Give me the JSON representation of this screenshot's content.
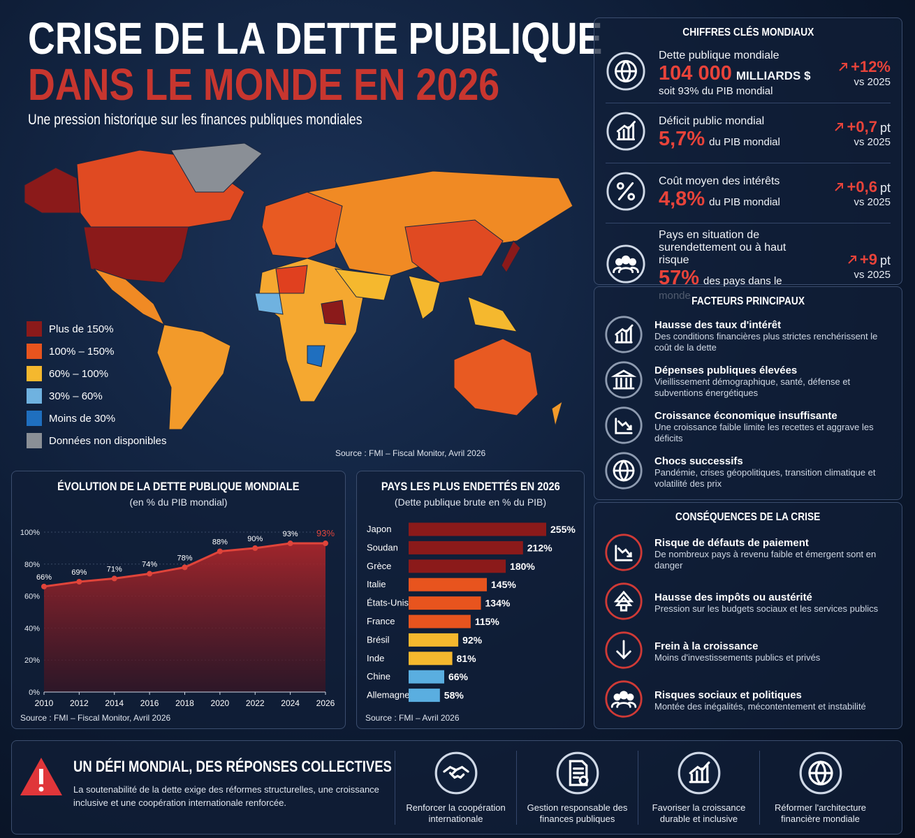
{
  "header": {
    "title_line1": "CRISE DE LA DETTE PUBLIQUE",
    "title_line2": "DANS LE MONDE EN 2026",
    "subtitle": "Une pression historique sur les finances publiques mondiales"
  },
  "map": {
    "legend": [
      {
        "label": "Plus de 150%",
        "color": "#8b1a1a"
      },
      {
        "label": "100% – 150%",
        "color": "#e8541e"
      },
      {
        "label": "60% – 100%",
        "color": "#f5b82e"
      },
      {
        "label": "30% – 60%",
        "color": "#6fb2e0"
      },
      {
        "label": "Moins de 30%",
        "color": "#1f6fbf"
      },
      {
        "label": "Données non disponibles",
        "color": "#8a8f96"
      }
    ],
    "source": "Source : FMI – Fiscal Monitor, Avril 2026"
  },
  "key_figures": {
    "title": "CHIFFRES CLÉS MONDIAUX",
    "items": [
      {
        "label": "Dette publique mondiale",
        "value": "104 000",
        "unit": "MILLIARDS $",
        "note": "soit 93% du PIB mondial",
        "change": "+12%",
        "ref": "vs 2025"
      },
      {
        "label": "Déficit public mondial",
        "value": "5,7%",
        "unit": "du PIB mondial",
        "change": "+0,7",
        "change_unit": "pt",
        "ref": "vs 2025"
      },
      {
        "label": "Coût moyen des intérêts",
        "value": "4,8%",
        "unit": "du PIB mondial",
        "change": "+0,6",
        "change_unit": "pt",
        "ref": "vs 2025"
      },
      {
        "label": "Pays en situation de surendettement ou à haut risque",
        "value": "57%",
        "unit": "des pays dans le monde",
        "change": "+9",
        "change_unit": "pt",
        "ref": "vs 2025"
      }
    ]
  },
  "factors": {
    "title": "FACTEURS PRINCIPAUX",
    "items": [
      {
        "title": "Hausse des taux d'intérêt",
        "text": "Des conditions financières plus strictes renchérissent le coût de la dette"
      },
      {
        "title": "Dépenses publiques élevées",
        "text": "Vieillissement démographique, santé, défense et subventions énergétiques"
      },
      {
        "title": "Croissance économique insuffisante",
        "text": "Une croissance faible limite les recettes et aggrave les déficits"
      },
      {
        "title": "Chocs successifs",
        "text": "Pandémie, crises géopolitiques, transition climatique et volatilité des prix"
      }
    ]
  },
  "consequences": {
    "title": "CONSÉQUENCES DE LA CRISE",
    "items": [
      {
        "title": "Risque de défauts de paiement",
        "text": "De nombreux pays à revenu faible et émergent sont en danger"
      },
      {
        "title": "Hausse des impôts ou austérité",
        "text": "Pression sur les budgets sociaux et les services publics"
      },
      {
        "title": "Frein à la croissance",
        "text": "Moins d'investissements publics et privés"
      },
      {
        "title": "Risques sociaux et politiques",
        "text": "Montée des inégalités, mécontentement et instabilité"
      }
    ]
  },
  "chart_data": [
    {
      "type": "line",
      "title": "ÉVOLUTION DE LA DETTE PUBLIQUE MONDIALE",
      "subtitle": "(en % du PIB mondial)",
      "x": [
        2010,
        2012,
        2014,
        2016,
        2018,
        2020,
        2022,
        2024,
        2026
      ],
      "values": [
        66,
        69,
        71,
        74,
        78,
        88,
        90,
        93,
        93
      ],
      "value_labels": [
        "66%",
        "69%",
        "71%",
        "74%",
        "78%",
        "88%",
        "90%",
        "93%",
        "93%"
      ],
      "color": "#e0443a",
      "xlim": [
        2010,
        2026
      ],
      "xticks": [
        2010,
        2012,
        2014,
        2016,
        2018,
        2020,
        2022,
        2024,
        2026
      ],
      "ylim": [
        0,
        100
      ],
      "yticks": [
        {
          "value": 0,
          "label": "0%"
        },
        {
          "value": 20,
          "label": "20%"
        },
        {
          "value": 40,
          "label": "40%"
        },
        {
          "value": 60,
          "label": "60%"
        },
        {
          "value": 80,
          "label": "80%"
        },
        {
          "value": 100,
          "label": "100%"
        }
      ],
      "grid": true,
      "source": "Source : FMI – Fiscal Monitor, Avril 2026"
    },
    {
      "type": "bar",
      "orientation": "horizontal",
      "title": "PAYS LES PLUS ENDETTÉS EN 2026",
      "subtitle": "(Dette publique brute en % du PIB)",
      "categories": [
        "Japon",
        "Soudan",
        "Grèce",
        "Italie",
        "États-Unis",
        "France",
        "Brésil",
        "Inde",
        "Chine",
        "Allemagne"
      ],
      "values": [
        255,
        212,
        180,
        145,
        134,
        115,
        92,
        81,
        66,
        58
      ],
      "value_labels": [
        "255%",
        "212%",
        "180%",
        "145%",
        "134%",
        "115%",
        "92%",
        "81%",
        "66%",
        "58%"
      ],
      "colors": [
        "#8b1a1a",
        "#8b1a1a",
        "#8b1a1a",
        "#e8541e",
        "#e8541e",
        "#e8541e",
        "#f5b82e",
        "#f5b82e",
        "#5aaee0",
        "#5aaee0"
      ],
      "source": "Source : FMI – Avril 2026"
    }
  ],
  "footer": {
    "title": "UN DÉFI MONDIAL, DES RÉPONSES COLLECTIVES",
    "text": "La soutenabilité de la dette exige des réformes structurelles, une croissance inclusive et une coopération internationale renforcée.",
    "actions": [
      "Renforcer la coopération internationale",
      "Gestion responsable des finances publiques",
      "Favoriser la croissance durable et inclusive",
      "Réformer l'architecture financière mondiale"
    ]
  }
}
